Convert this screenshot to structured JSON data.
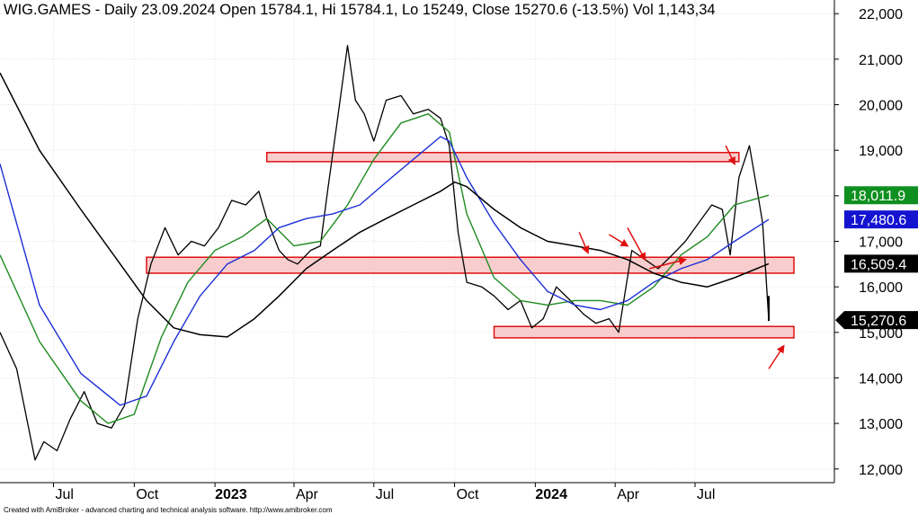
{
  "title": "WIG.GAMES - Daily 23.09.2024 Open 15784.1, Hi 15784.1, Lo 15249, Close 15270.6 (-13.5%) Vol 1,143,34",
  "footer": "Created with AmiBroker - advanced charting and technical analysis software. http://www.amibroker.com",
  "colors": {
    "price": "#000000",
    "ma_green": "#1f8a1f",
    "ma_blue": "#1c2fd6",
    "ma_black": "#000000",
    "zone_fill": "#f7c4c4",
    "zone_stroke": "#e01010",
    "arrow": "#e01010",
    "badge_green": "#0f8f1f",
    "badge_blue": "#1414d0",
    "badge_black": "#000000"
  },
  "chart_data": {
    "type": "line",
    "title": "WIG.GAMES - Daily 23.09.2024 Open 15784.1, Hi 15784.1, Lo 15249, Close 15270.6 (-13.5%) Vol 1,143,34",
    "ylim": [
      11700,
      22300
    ],
    "grid": true,
    "x_tick_labels": [
      "Jul",
      "Oct",
      "2023",
      "Apr",
      "Jul",
      "Oct",
      "2024",
      "Apr",
      "Jul"
    ],
    "x_tick_dates": [
      "2022-07-01",
      "2022-10-01",
      "2023-01-01",
      "2023-04-01",
      "2023-07-01",
      "2023-10-01",
      "2024-01-01",
      "2024-04-01",
      "2024-07-01"
    ],
    "y_ticks": [
      12000,
      13000,
      14000,
      15000,
      16000,
      17000,
      18000,
      19000,
      20000,
      21000,
      22000
    ],
    "y_tick_labels": [
      "12,000",
      "13,000",
      "14,000",
      "15,000",
      "16,000",
      "17,000",
      "18,000",
      "19,000",
      "20,000",
      "21,000",
      "22,000"
    ],
    "x_range": [
      "2022-05-01",
      "2024-09-23"
    ],
    "series": [
      {
        "key": "price",
        "x": [
          "2022-05-01",
          "2022-05-20",
          "2022-06-10",
          "2022-06-20",
          "2022-07-05",
          "2022-07-20",
          "2022-08-05",
          "2022-08-20",
          "2022-09-05",
          "2022-09-20",
          "2022-10-05",
          "2022-10-20",
          "2022-11-05",
          "2022-11-20",
          "2022-12-05",
          "2022-12-20",
          "2023-01-05",
          "2023-01-20",
          "2023-02-05",
          "2023-02-20",
          "2023-03-01",
          "2023-03-15",
          "2023-03-25",
          "2023-04-05",
          "2023-04-20",
          "2023-05-01",
          "2023-05-10",
          "2023-05-20",
          "2023-06-01",
          "2023-06-10",
          "2023-06-20",
          "2023-07-01",
          "2023-07-15",
          "2023-08-01",
          "2023-08-15",
          "2023-09-01",
          "2023-09-15",
          "2023-09-25",
          "2023-10-05",
          "2023-10-15",
          "2023-11-01",
          "2023-11-15",
          "2023-12-01",
          "2023-12-15",
          "2023-12-28",
          "2024-01-10",
          "2024-01-25",
          "2024-02-10",
          "2024-02-25",
          "2024-03-10",
          "2024-03-25",
          "2024-04-05",
          "2024-04-20",
          "2024-05-05",
          "2024-05-20",
          "2024-06-05",
          "2024-06-20",
          "2024-07-05",
          "2024-07-20",
          "2024-08-01",
          "2024-08-10",
          "2024-08-20",
          "2024-09-01",
          "2024-09-10",
          "2024-09-16",
          "2024-09-23"
        ],
        "values": [
          15000,
          14200,
          12200,
          12600,
          12400,
          13100,
          13700,
          13000,
          12900,
          13400,
          15300,
          16500,
          17300,
          16700,
          17000,
          16900,
          17300,
          17900,
          17800,
          18100,
          17500,
          16800,
          16600,
          16500,
          16800,
          16900,
          18200,
          19600,
          21300,
          20100,
          19800,
          19200,
          20100,
          20200,
          19800,
          19900,
          19700,
          19100,
          17200,
          16100,
          16000,
          15800,
          15500,
          15700,
          15100,
          15300,
          16000,
          15700,
          15400,
          15200,
          15300,
          15000,
          16800,
          16600,
          16400,
          16700,
          17000,
          17400,
          17800,
          17700,
          16700,
          18400,
          19100,
          18100,
          17400,
          15270.6
        ]
      },
      {
        "key": "ma_green",
        "x": [
          "2022-05-01",
          "2022-06-15",
          "2022-08-01",
          "2022-09-01",
          "2022-10-01",
          "2022-11-01",
          "2022-12-01",
          "2023-01-01",
          "2023-02-01",
          "2023-03-01",
          "2023-04-01",
          "2023-05-01",
          "2023-06-01",
          "2023-07-01",
          "2023-08-01",
          "2023-09-01",
          "2023-09-25",
          "2023-10-15",
          "2023-11-15",
          "2023-12-15",
          "2024-01-15",
          "2024-02-15",
          "2024-03-15",
          "2024-04-15",
          "2024-05-15",
          "2024-06-15",
          "2024-07-15",
          "2024-08-15",
          "2024-09-23"
        ],
        "values": [
          16700,
          14800,
          13500,
          13000,
          13200,
          14900,
          16100,
          16800,
          17100,
          17500,
          16900,
          17000,
          17800,
          18800,
          19600,
          19800,
          19400,
          17600,
          16200,
          15700,
          15600,
          15700,
          15700,
          15600,
          16000,
          16700,
          17100,
          17800,
          18011.9
        ]
      },
      {
        "key": "ma_blue",
        "x": [
          "2022-05-01",
          "2022-06-15",
          "2022-08-01",
          "2022-09-15",
          "2022-10-15",
          "2022-11-15",
          "2022-12-15",
          "2023-01-15",
          "2023-02-15",
          "2023-03-15",
          "2023-04-15",
          "2023-05-15",
          "2023-06-15",
          "2023-07-15",
          "2023-08-15",
          "2023-09-15",
          "2023-09-25",
          "2023-10-15",
          "2023-11-15",
          "2023-12-15",
          "2024-01-15",
          "2024-02-15",
          "2024-03-15",
          "2024-04-15",
          "2024-05-15",
          "2024-06-15",
          "2024-07-15",
          "2024-08-15",
          "2024-09-23"
        ],
        "values": [
          18700,
          15600,
          14100,
          13400,
          13600,
          14800,
          15800,
          16500,
          16800,
          17300,
          17500,
          17600,
          17800,
          18300,
          18800,
          19300,
          19200,
          18400,
          17400,
          16600,
          15900,
          15600,
          15500,
          15700,
          16100,
          16400,
          16600,
          17000,
          17480.6
        ]
      },
      {
        "key": "ma_black",
        "x": [
          "2022-05-01",
          "2022-06-15",
          "2022-08-01",
          "2022-09-15",
          "2022-10-15",
          "2022-11-15",
          "2022-12-15",
          "2023-01-15",
          "2023-02-15",
          "2023-03-15",
          "2023-04-15",
          "2023-05-15",
          "2023-06-15",
          "2023-07-15",
          "2023-08-15",
          "2023-09-15",
          "2023-10-01",
          "2023-10-15",
          "2023-11-15",
          "2023-12-15",
          "2024-01-15",
          "2024-02-15",
          "2024-03-15",
          "2024-04-15",
          "2024-05-15",
          "2024-06-15",
          "2024-07-15",
          "2024-08-15",
          "2024-09-23"
        ],
        "values": [
          20700,
          19000,
          17700,
          16500,
          15700,
          15100,
          14950,
          14900,
          15300,
          15800,
          16400,
          16800,
          17200,
          17500,
          17800,
          18100,
          18300,
          18200,
          17700,
          17300,
          17000,
          16900,
          16800,
          16600,
          16300,
          16100,
          16000,
          16200,
          16509.4
        ]
      }
    ],
    "zones": [
      {
        "x_start": "2023-03-01",
        "x_end": "2024-08-20",
        "y_low": 18750,
        "y_high": 18950
      },
      {
        "x_start": "2022-10-15",
        "x_end": "2024-09-23",
        "y_low": 16300,
        "y_high": 16650
      },
      {
        "x_start": "2023-11-15",
        "x_end": "2024-09-23",
        "y_low": 14880,
        "y_high": 15130
      }
    ],
    "arrows": [
      {
        "from": [
          "2024-02-20",
          17200
        ],
        "to": [
          "2024-03-01",
          16750
        ]
      },
      {
        "from": [
          "2024-03-25",
          17150
        ],
        "to": [
          "2024-04-15",
          16900
        ]
      },
      {
        "from": [
          "2024-04-15",
          17300
        ],
        "to": [
          "2024-05-05",
          16600
        ]
      },
      {
        "from": [
          "2024-05-10",
          16400
        ],
        "to": [
          "2024-06-20",
          16600
        ]
      },
      {
        "from": [
          "2024-08-05",
          19100
        ],
        "to": [
          "2024-08-15",
          18700
        ]
      },
      {
        "from": [
          "2024-09-23",
          14200
        ],
        "to": [
          "2024-10-10",
          14700
        ]
      }
    ],
    "last_tick": {
      "x": "2024-09-23",
      "low": 15250,
      "high": 15800
    },
    "badges": [
      {
        "key": "badge_green",
        "label": "18,011.9",
        "value": 18011.9
      },
      {
        "key": "badge_blue",
        "label": "17,480.6",
        "value": 17480.6
      },
      {
        "key": "badge_black",
        "label": "16,509.4",
        "value": 16509.4
      },
      {
        "key": "badge_black",
        "label": "15,270.6",
        "value": 15270.6,
        "pointer": true
      }
    ]
  }
}
